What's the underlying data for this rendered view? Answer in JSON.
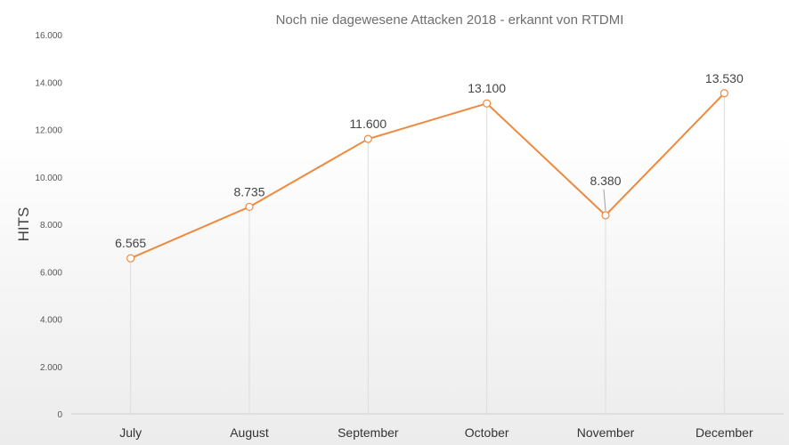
{
  "chart_data": {
    "type": "line",
    "title": "Noch nie dagewesene Attacken 2018 - erkannt von RTDMI",
    "xlabel": "",
    "ylabel": "HITS",
    "categories": [
      "July",
      "August",
      "September",
      "October",
      "November",
      "December"
    ],
    "series": [
      {
        "values": [
          6565,
          8735,
          11600,
          13100,
          8380,
          13530
        ],
        "labels": [
          "6.565",
          "8.735",
          "11.600",
          "13.100",
          "8.380",
          "13.530"
        ]
      }
    ],
    "ylim": [
      0,
      16000
    ],
    "yticks": [
      0,
      2000,
      4000,
      6000,
      8000,
      10000,
      12000,
      14000,
      16000
    ],
    "ytick_labels": [
      "0",
      "2.000",
      "4.000",
      "6.000",
      "8.000",
      "10.000",
      "12.000",
      "14.000",
      "16.000"
    ],
    "grid": false,
    "drop_lines": true,
    "legend": "none",
    "colors": {
      "line": "#ed8a3f",
      "marker_fill": "#ffffff",
      "drop_line": "#dddddd",
      "axis": "#d0d0d0"
    }
  }
}
